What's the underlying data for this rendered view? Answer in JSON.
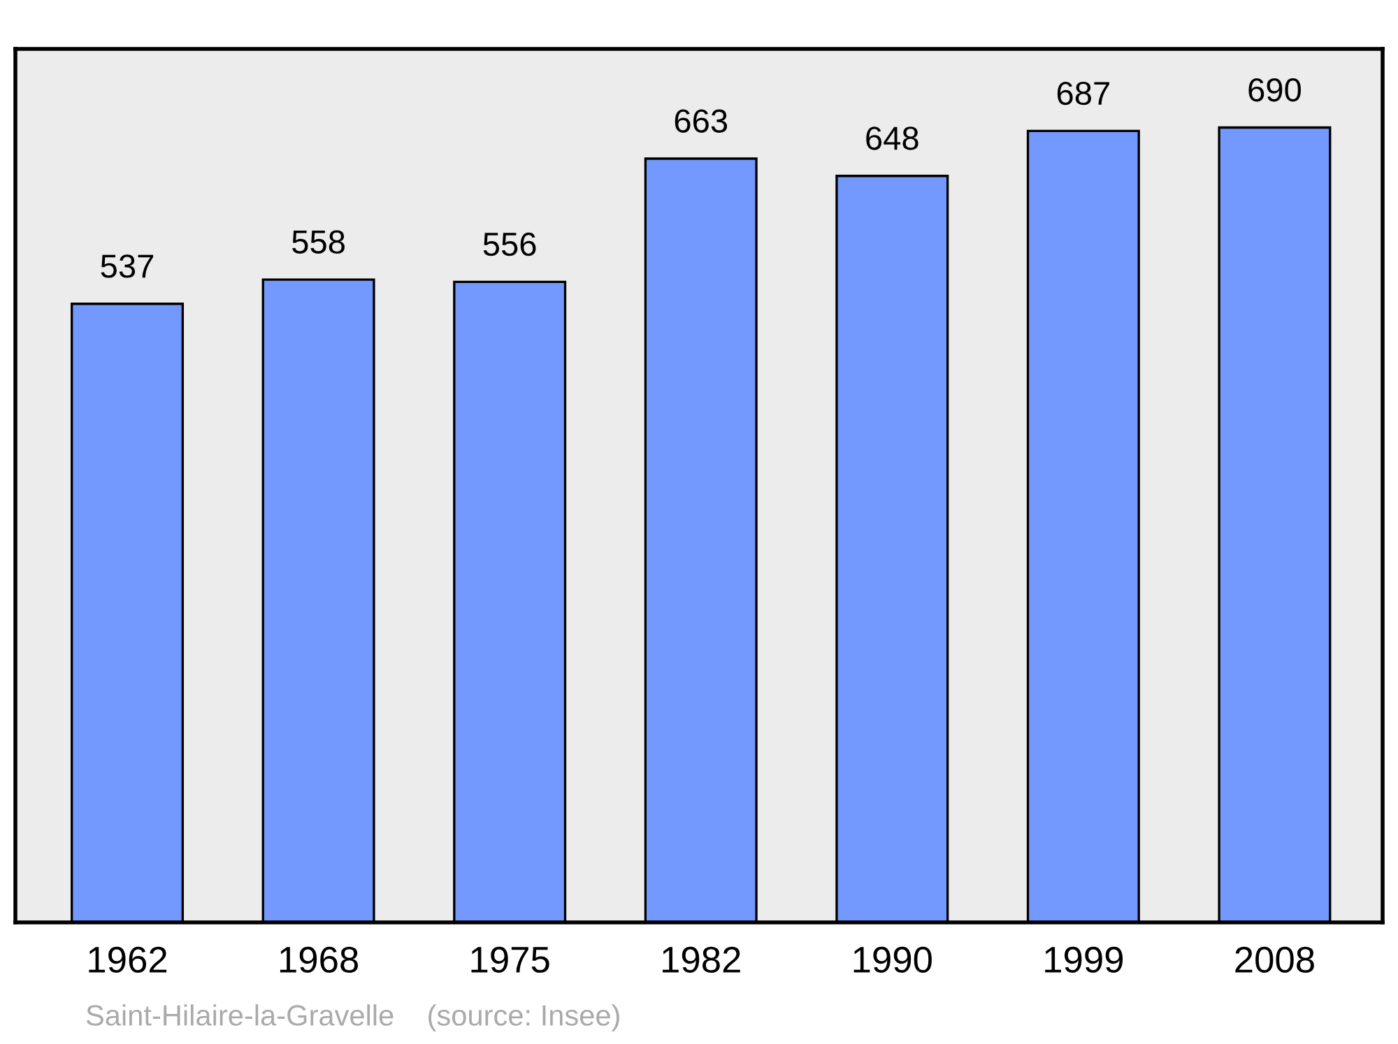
{
  "chart_data": {
    "type": "bar",
    "categories": [
      "1962",
      "1968",
      "1975",
      "1982",
      "1990",
      "1999",
      "2008"
    ],
    "values": [
      537,
      558,
      556,
      663,
      648,
      687,
      690
    ],
    "color": "#7399ff",
    "data_labels": true,
    "grid": false,
    "legend": false,
    "annotations": [
      "Saint-Hilaire-la-Gravelle    (source: Insee)"
    ]
  }
}
